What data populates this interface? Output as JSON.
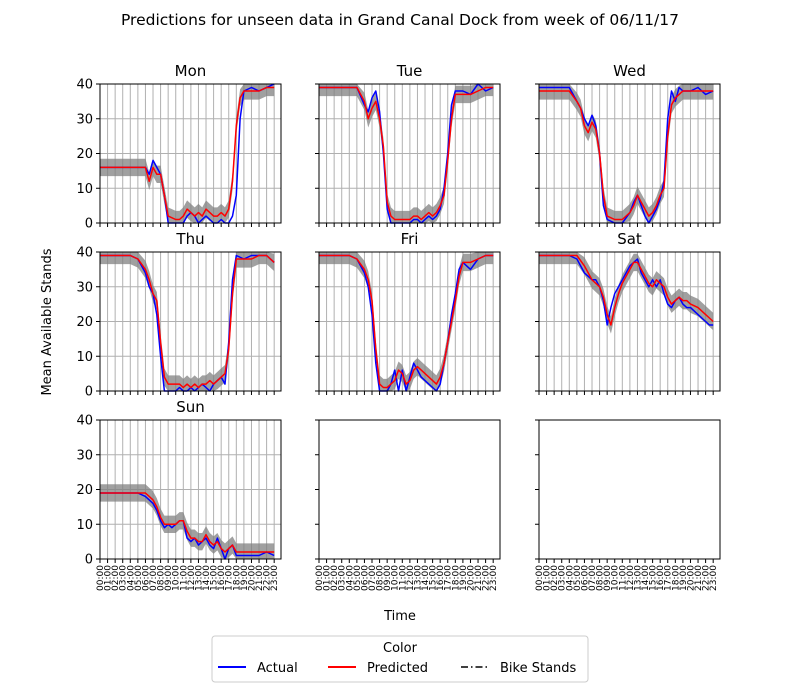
{
  "title": "Predictions for unseen data in Grand Canal Dock from week of 06/11/17",
  "ylabel": "Mean Available Stands",
  "xlabel": "Time",
  "legend": {
    "title": "Color",
    "items": [
      {
        "label": "Actual",
        "color": "#0000ff",
        "style": "solid"
      },
      {
        "label": "Predicted",
        "color": "#ff0000",
        "style": "solid"
      },
      {
        "label": "Bike Stands",
        "color": "#000000",
        "style": "dashdot"
      }
    ]
  },
  "chart_data": {
    "type": "line",
    "ylim": [
      0,
      40
    ],
    "yticks": [
      0,
      10,
      20,
      30,
      40
    ],
    "grid": true,
    "layout": "3x3",
    "xticks": [
      "00:00",
      "01:00",
      "02:00",
      "03:00",
      "04:00",
      "05:00",
      "06:00",
      "07:00",
      "08:00",
      "09:00",
      "10:00",
      "11:00",
      "12:00",
      "13:00",
      "14:00",
      "15:00",
      "16:00",
      "17:00",
      "18:00",
      "19:00",
      "20:00",
      "21:00",
      "22:00",
      "23:00"
    ],
    "band_halfwidth": 2.5,
    "panels": [
      {
        "name": "Mon",
        "x": [
          0,
          1,
          2,
          3,
          4,
          5,
          6,
          6.5,
          7,
          7.5,
          8,
          8.5,
          9,
          10,
          10.5,
          11,
          11.5,
          12,
          12.5,
          13,
          13.5,
          14,
          14.5,
          15,
          15.5,
          16,
          16.5,
          17,
          17.5,
          18,
          18.5,
          19,
          20,
          21,
          22,
          23
        ],
        "actual": [
          16,
          16,
          16,
          16,
          16,
          16,
          16,
          14,
          18,
          16,
          14,
          8,
          0,
          0,
          0,
          0,
          2,
          3,
          2,
          0,
          1,
          2,
          1,
          0,
          0,
          1,
          0,
          0,
          2,
          8,
          30,
          38,
          39,
          38,
          39,
          40
        ],
        "predicted": [
          16,
          16,
          16,
          16,
          16,
          16,
          16,
          12,
          16,
          14,
          14,
          8,
          2,
          1,
          1,
          2,
          4,
          3,
          2,
          3,
          2,
          4,
          3,
          2,
          2,
          3,
          2,
          4,
          12,
          28,
          36,
          38,
          38,
          38,
          39,
          39
        ]
      },
      {
        "name": "Tue",
        "x": [
          0,
          1,
          2,
          3,
          4,
          5,
          6,
          6.5,
          7,
          7.5,
          8,
          8.5,
          9,
          9.5,
          10,
          11,
          12,
          12.5,
          13,
          13.5,
          14,
          14.5,
          15,
          15.5,
          16,
          16.5,
          17,
          17.5,
          18,
          19,
          20,
          21,
          22,
          23
        ],
        "actual": [
          39,
          39,
          39,
          39,
          39,
          39,
          34,
          32,
          36,
          38,
          32,
          20,
          4,
          0,
          0,
          0,
          0,
          1,
          1,
          0,
          1,
          2,
          1,
          2,
          4,
          10,
          20,
          34,
          38,
          38,
          37,
          40,
          38,
          39
        ],
        "predicted": [
          39,
          39,
          39,
          39,
          39,
          39,
          35,
          30,
          33,
          35,
          30,
          22,
          6,
          2,
          1,
          1,
          1,
          2,
          2,
          1,
          2,
          3,
          2,
          3,
          5,
          8,
          18,
          30,
          37,
          37,
          37,
          38,
          39,
          39
        ]
      },
      {
        "name": "Wed",
        "x": [
          0,
          1,
          2,
          3,
          4,
          5,
          5.5,
          6,
          6.5,
          7,
          7.5,
          8,
          8.5,
          9,
          10,
          11,
          12,
          12.5,
          13,
          13.5,
          14,
          14.5,
          15,
          15.5,
          16,
          16.5,
          17,
          17.5,
          18,
          18.5,
          19,
          20,
          21,
          22,
          23
        ],
        "actual": [
          39,
          39,
          39,
          39,
          39,
          35,
          33,
          30,
          28,
          31,
          28,
          20,
          5,
          1,
          0,
          0,
          3,
          6,
          8,
          5,
          2,
          0,
          2,
          4,
          7,
          12,
          30,
          38,
          35,
          39,
          38,
          38,
          39,
          37,
          38
        ],
        "predicted": [
          38,
          38,
          38,
          38,
          38,
          35,
          33,
          28,
          26,
          29,
          27,
          20,
          8,
          2,
          1,
          1,
          3,
          5,
          8,
          6,
          4,
          2,
          3,
          5,
          8,
          10,
          25,
          34,
          36,
          37,
          38,
          38,
          38,
          38,
          38
        ]
      },
      {
        "name": "Thu",
        "x": [
          0,
          1,
          2,
          3,
          4,
          5,
          6,
          6.5,
          7,
          7.5,
          8,
          8.5,
          9,
          10,
          10.5,
          11,
          11.5,
          12,
          12.5,
          13,
          13.5,
          14,
          14.5,
          15,
          15.5,
          16,
          16.5,
          17,
          17.5,
          18,
          19,
          20,
          21,
          22,
          23
        ],
        "actual": [
          39,
          39,
          39,
          39,
          39,
          38,
          34,
          30,
          28,
          22,
          10,
          0,
          0,
          0,
          1,
          0,
          0,
          1,
          0,
          1,
          2,
          1,
          0,
          2,
          3,
          4,
          2,
          14,
          32,
          39,
          38,
          39,
          39,
          39,
          37
        ],
        "predicted": [
          39,
          39,
          39,
          39,
          39,
          38,
          35,
          32,
          28,
          26,
          14,
          4,
          2,
          2,
          2,
          1,
          2,
          1,
          2,
          1,
          2,
          2,
          3,
          2,
          3,
          4,
          5,
          12,
          28,
          38,
          38,
          38,
          39,
          39,
          37
        ]
      },
      {
        "name": "Fri",
        "x": [
          0,
          1,
          2,
          3,
          4,
          5,
          6,
          6.5,
          7,
          7.5,
          8,
          8.5,
          9,
          9.5,
          10,
          10.5,
          11,
          11.5,
          12,
          12.5,
          13,
          13.5,
          14,
          14.5,
          15,
          15.5,
          16,
          16.5,
          17,
          17.5,
          18,
          18.5,
          19,
          20,
          21,
          22,
          23
        ],
        "actual": [
          39,
          39,
          39,
          39,
          39,
          38,
          34,
          30,
          22,
          8,
          0,
          0,
          0,
          2,
          6,
          0,
          6,
          0,
          4,
          8,
          6,
          4,
          3,
          2,
          1,
          0,
          2,
          8,
          14,
          22,
          28,
          35,
          37,
          35,
          38,
          39,
          39
        ],
        "predicted": [
          39,
          39,
          39,
          39,
          39,
          38,
          35,
          32,
          26,
          12,
          2,
          1,
          1,
          2,
          3,
          6,
          5,
          2,
          3,
          6,
          7,
          6,
          5,
          4,
          3,
          2,
          4,
          8,
          14,
          20,
          26,
          33,
          37,
          37,
          38,
          39,
          39
        ]
      },
      {
        "name": "Sat",
        "x": [
          0,
          1,
          2,
          3,
          4,
          5,
          6,
          6.5,
          7,
          7.5,
          8,
          8.5,
          9,
          9.5,
          10,
          10.5,
          11,
          11.5,
          12,
          12.5,
          13,
          13.5,
          14,
          14.5,
          15,
          15.5,
          16,
          16.5,
          17,
          17.5,
          18,
          18.5,
          19,
          19.5,
          20,
          21,
          22,
          22.5,
          23
        ],
        "actual": [
          39,
          39,
          39,
          39,
          39,
          38,
          34,
          33,
          32,
          32,
          30,
          26,
          19,
          24,
          28,
          30,
          32,
          34,
          36,
          37,
          38,
          34,
          32,
          30,
          32,
          30,
          32,
          28,
          25,
          24,
          26,
          27,
          25,
          24,
          24,
          22,
          20,
          19,
          19
        ],
        "predicted": [
          39,
          39,
          39,
          39,
          39,
          39,
          36,
          34,
          32,
          31,
          30,
          27,
          22,
          19,
          24,
          28,
          31,
          33,
          35,
          37,
          37,
          35,
          33,
          31,
          30,
          32,
          31,
          30,
          27,
          25,
          26,
          27,
          26,
          26,
          25,
          24,
          22,
          21,
          20
        ]
      },
      {
        "name": "Sun",
        "x": [
          0,
          1,
          2,
          3,
          4,
          5,
          6,
          6.5,
          7,
          7.5,
          8,
          8.5,
          9,
          9.5,
          10,
          10.5,
          11,
          11.5,
          12,
          12.5,
          13,
          13.5,
          14,
          14.5,
          15,
          15.5,
          16,
          16.5,
          17,
          17.5,
          18,
          18.5,
          19,
          20,
          21,
          22,
          23
        ],
        "actual": [
          19,
          19,
          19,
          19,
          19,
          19,
          18,
          17,
          16,
          14,
          11,
          9,
          10,
          9,
          10,
          11,
          11,
          6,
          5,
          6,
          4,
          5,
          6,
          4,
          3,
          6,
          3,
          0,
          3,
          4,
          1,
          1,
          1,
          1,
          1,
          2,
          1
        ],
        "predicted": [
          19,
          19,
          19,
          19,
          19,
          19,
          19,
          18,
          17,
          15,
          12,
          10,
          10,
          10,
          10,
          11,
          11,
          8,
          6,
          6,
          5,
          5,
          7,
          5,
          4,
          5,
          3,
          2,
          3,
          4,
          2,
          2,
          2,
          2,
          2,
          2,
          2
        ]
      },
      {
        "name": "",
        "x": [],
        "actual": [],
        "predicted": []
      },
      {
        "name": "",
        "x": [],
        "actual": [],
        "predicted": []
      }
    ]
  }
}
